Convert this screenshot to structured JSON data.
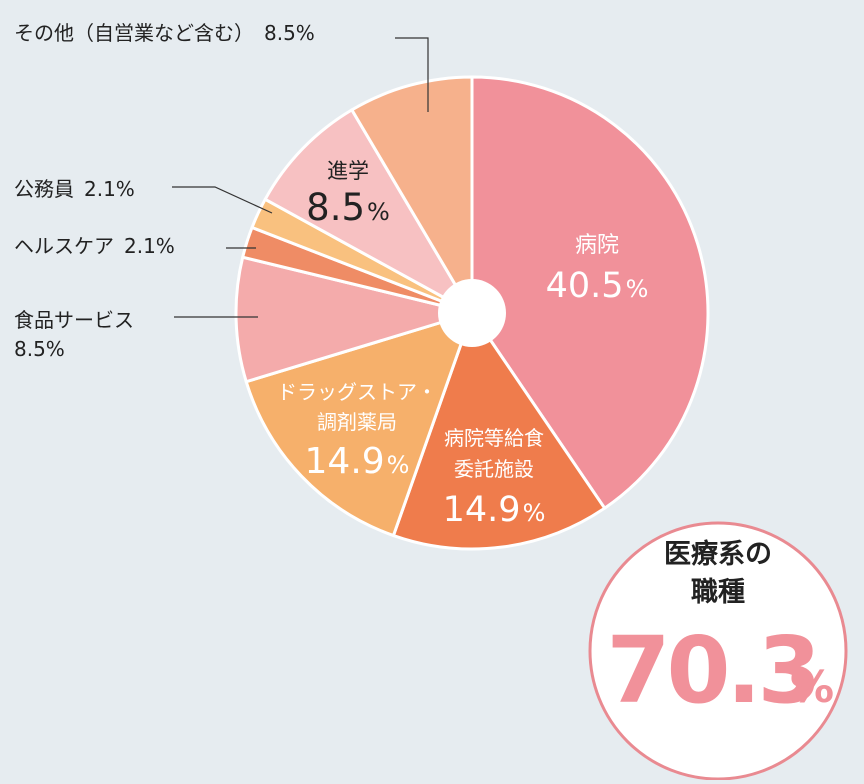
{
  "chart_data": {
    "type": "pie",
    "title": "",
    "start_angle_deg": 0,
    "direction": "clockwise",
    "center_hole": true,
    "slices": [
      {
        "key": "hospital",
        "label": "病院",
        "display_lines": [
          "病院"
        ],
        "value": 40.5,
        "value_text": "40.5",
        "color": "#f1919a",
        "label_placement": "inside",
        "text_color": "#ffffff"
      },
      {
        "key": "hospital_food",
        "label": "病院等給食委託施設",
        "display_lines": [
          "病院等給食",
          "委託施設"
        ],
        "value": 14.9,
        "value_text": "14.9",
        "color": "#ef7c4c",
        "label_placement": "inside",
        "text_color": "#ffffff"
      },
      {
        "key": "drugstore",
        "label": "ドラッグストア・調剤薬局",
        "display_lines": [
          "ドラッグストア・",
          "調剤薬局"
        ],
        "value": 14.9,
        "value_text": "14.9",
        "color": "#f6b06b",
        "label_placement": "inside",
        "text_color": "#ffffff"
      },
      {
        "key": "food_service",
        "label": "食品サービス",
        "display_lines": [
          "食品サービス"
        ],
        "value": 8.5,
        "value_text": "8.5",
        "color": "#f4abab",
        "label_placement": "outside",
        "text_color": "#222222"
      },
      {
        "key": "healthcare",
        "label": "ヘルスケア",
        "display_lines": [
          "ヘルスケア"
        ],
        "value": 2.1,
        "value_text": "2.1",
        "color": "#ef8c65",
        "label_placement": "outside",
        "text_color": "#222222"
      },
      {
        "key": "public_servant",
        "label": "公務員",
        "display_lines": [
          "公務員"
        ],
        "value": 2.1,
        "value_text": "2.1",
        "color": "#f9c17f",
        "label_placement": "outside",
        "text_color": "#222222"
      },
      {
        "key": "further_study",
        "label": "進学",
        "display_lines": [
          "進学"
        ],
        "value": 8.5,
        "value_text": "8.5",
        "color": "#f7c1c2",
        "label_placement": "inside",
        "text_color": "#222222"
      },
      {
        "key": "other",
        "label": "その他（自営業など含む）",
        "display_lines": [
          "その他（自営業など含む）"
        ],
        "value": 8.5,
        "value_text": "8.5",
        "color": "#f6b18c",
        "label_placement": "outside",
        "text_color": "#222222"
      }
    ],
    "percent_sign": "%",
    "summary": {
      "line1": "医療系の",
      "line2": "職種",
      "value_text": "70.3",
      "percent_sign": "%",
      "ring_color": "#e98a91",
      "value_color": "#f1919a"
    }
  }
}
